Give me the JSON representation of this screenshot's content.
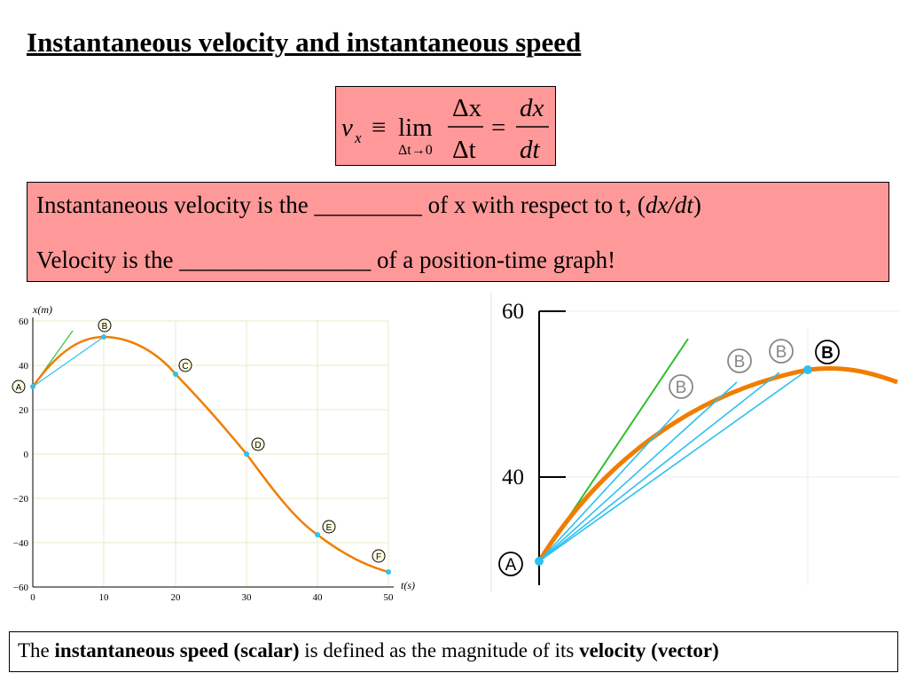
{
  "title": "Instantaneous velocity and instantaneous speed",
  "formula": {
    "v": "v",
    "sub_x": "x",
    "equiv": "≡",
    "lim": "lim",
    "lim_sub": "Δt→0",
    "num1": "Δx",
    "den1": "Δt",
    "eq": "=",
    "num2": "dx",
    "den2": "dt"
  },
  "definitions": {
    "line1_pre": "Instantaneous velocity is the _________ of x with respect to t, (",
    "line1_em": "dx/dt",
    "line1_post": ")",
    "line2": "Velocity is the ________________ of a position-time graph!"
  },
  "left_graph": {
    "y_axis_label": "x(m)",
    "x_axis_label": "t(s)",
    "y_ticks": [
      "60",
      "40",
      "20",
      "0",
      "−20",
      "−40",
      "−60"
    ],
    "x_ticks": [
      "0",
      "10",
      "20",
      "30",
      "40",
      "50"
    ],
    "points": [
      "A",
      "B",
      "C",
      "D",
      "E",
      "F"
    ]
  },
  "right_graph": {
    "y_ticks": [
      "60",
      "40"
    ],
    "point_a": "A",
    "point_b": "B",
    "ghost_b": [
      "B",
      "B",
      "B"
    ]
  },
  "footer": {
    "pre": "The ",
    "b1": "instantaneous speed (scalar)",
    "mid": " is defined as the magnitude of its ",
    "b2": "velocity (vector)"
  },
  "colors": {
    "box_fill": "#ff9999",
    "curve": "#f07d00",
    "secant": "#2ec0f0",
    "tangent": "#30c030",
    "grid": "#e8e8c8"
  }
}
